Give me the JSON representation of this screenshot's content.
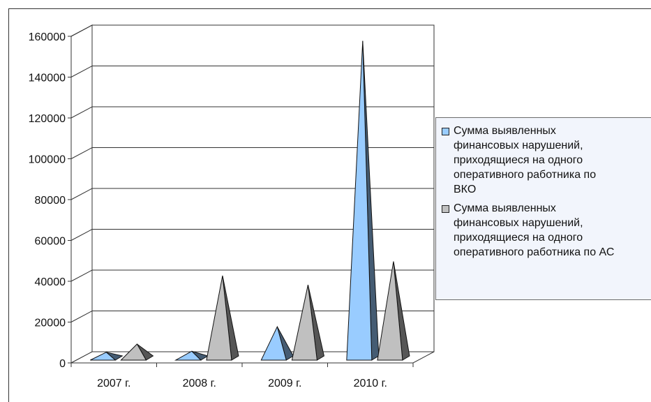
{
  "chart_data": {
    "type": "bar",
    "categories": [
      "2007 г.",
      "2008 г.",
      "2009 г.",
      "2010 г."
    ],
    "series": [
      {
        "name": "Сумма выявленных финансовых нарушений, приходящиеся на одного оперативного работника по ВКО",
        "values": [
          2500,
          3000,
          15000,
          155000
        ],
        "color": "#99ccff"
      },
      {
        "name": "Сумма выявленных финансовых нарушений, приходящиеся на одного оперативного работника по АС",
        "values": [
          6500,
          40000,
          35500,
          47000
        ],
        "color": "#c0c0c0"
      }
    ],
    "y_ticks": [
      "0",
      "20000",
      "40000",
      "60000",
      "80000",
      "100000",
      "120000",
      "140000",
      "160000"
    ],
    "ylim": [
      0,
      160000
    ],
    "grid": true,
    "legend_position": "right"
  },
  "legend": {
    "items": [
      {
        "label": "Сумма выявленных\nфинансовых нарушений,\nприходящиеся на одного\nоперативного работника по\nВКО",
        "color": "#99ccff"
      },
      {
        "label": "Сумма выявленных\nфинансовых нарушений,\nприходящиеся на одного\nоперативного работника по АС",
        "color": "#c0c0c0"
      }
    ]
  }
}
